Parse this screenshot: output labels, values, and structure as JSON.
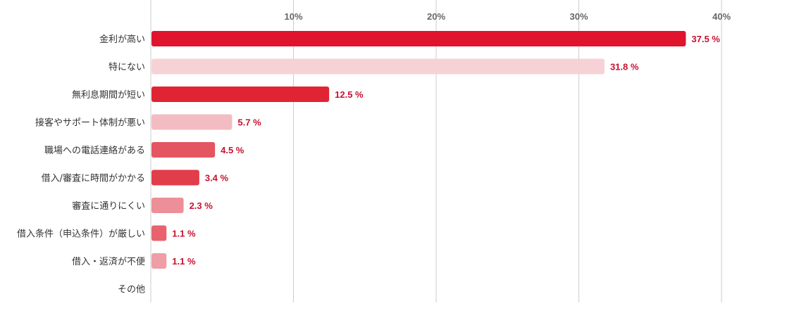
{
  "chart_data": {
    "type": "bar",
    "orientation": "horizontal",
    "xlim": [
      0,
      40
    ],
    "ticks": [
      {
        "value": 10,
        "label": "10%"
      },
      {
        "value": 20,
        "label": "20%"
      },
      {
        "value": 30,
        "label": "30%"
      },
      {
        "value": 40,
        "label": "40%"
      }
    ],
    "grid": true,
    "categories": [
      "金利が高い",
      "特にない",
      "無利息期間が短い",
      "接客やサポート体制が悪い",
      "職場への電話連絡がある",
      "借入/審査に時間がかかる",
      "審査に通りにくい",
      "借入条件（申込条件）が厳しい",
      "借入・返済が不便",
      "その他"
    ],
    "values": [
      37.5,
      31.8,
      12.5,
      5.7,
      4.5,
      3.4,
      2.3,
      1.1,
      1.1,
      null
    ],
    "value_labels": [
      "37.5 %",
      "31.8 %",
      "12.5 %",
      "5.7 %",
      "4.5 %",
      "3.4 %",
      "2.3 %",
      "1.1 %",
      "1.1 %",
      ""
    ],
    "bar_colors": [
      "#e0142d",
      "#f6d2d6",
      "#e02433",
      "#f3bcc2",
      "#e45561",
      "#e13d4a",
      "#ec8f98",
      "#e8636e",
      "#ef9ea6",
      "#ffffff"
    ],
    "label_color": "#c8102e",
    "grid_color": "#cccccc"
  }
}
